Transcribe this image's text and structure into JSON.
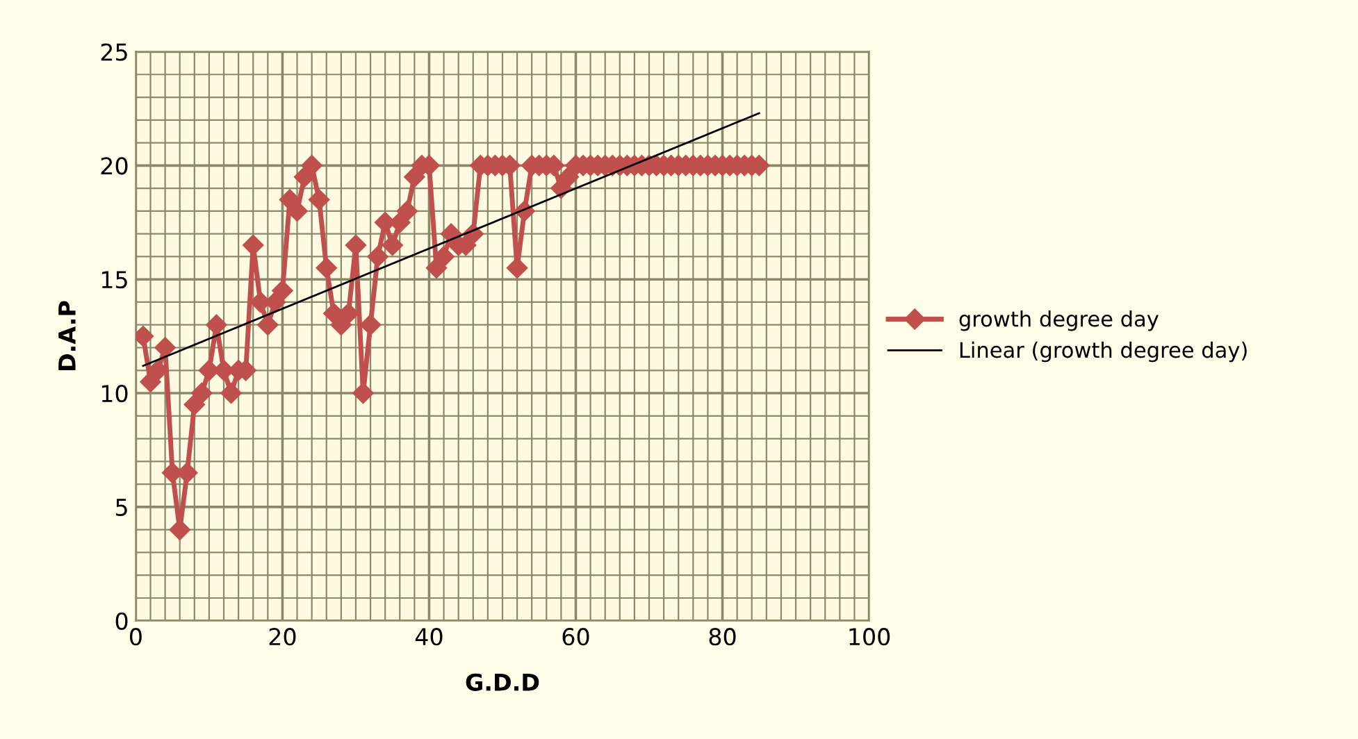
{
  "chart_data": {
    "type": "line",
    "xlabel": "G.D.D",
    "ylabel": "D.A.P",
    "xlim": [
      0,
      100
    ],
    "ylim": [
      0,
      25
    ],
    "xticks": [
      0,
      20,
      40,
      60,
      80,
      100
    ],
    "yticks": [
      0,
      5,
      10,
      15,
      20,
      25
    ],
    "grid": true,
    "legend": "right",
    "marker": "diamond",
    "line_style": "solid",
    "series": [
      {
        "name": "growth degree day",
        "color": "#c0504d",
        "x": [
          1,
          2,
          3,
          4,
          5,
          6,
          7,
          8,
          9,
          10,
          11,
          12,
          13,
          14,
          15,
          16,
          17,
          18,
          19,
          20,
          21,
          22,
          23,
          24,
          25,
          26,
          27,
          28,
          29,
          30,
          31,
          32,
          33,
          34,
          35,
          36,
          37,
          38,
          39,
          40,
          41,
          42,
          43,
          44,
          45,
          46,
          47,
          48,
          49,
          50,
          51,
          52,
          53,
          54,
          55,
          56,
          57,
          58,
          59,
          60,
          61,
          62,
          63,
          64,
          65,
          66,
          67,
          68,
          69,
          70,
          71,
          72,
          73,
          74,
          75,
          76,
          77,
          78,
          79,
          80,
          81,
          82,
          83,
          84,
          85
        ],
        "values": [
          12.5,
          10.5,
          11,
          12,
          6.5,
          4,
          6.5,
          9.5,
          10,
          11,
          13,
          11,
          10,
          11,
          11,
          16.5,
          14,
          13,
          14,
          14.5,
          18.5,
          18,
          19.5,
          20,
          18.5,
          15.5,
          13.5,
          13,
          13.5,
          16.5,
          10,
          13,
          16,
          17.5,
          16.5,
          17.5,
          18,
          19.5,
          20,
          20,
          15.5,
          16,
          17,
          16.5,
          16.5,
          17,
          20,
          20,
          20,
          20,
          20,
          15.5,
          18,
          20,
          20,
          20,
          20,
          19,
          19.5,
          20,
          20,
          20,
          20,
          20,
          20,
          20,
          20,
          20,
          20,
          20,
          20,
          20,
          20,
          20,
          20,
          20,
          20,
          20,
          20,
          20,
          20,
          20,
          20,
          20,
          20
        ]
      },
      {
        "name": "Linear (growth degree day)",
        "type": "line",
        "color": "#000000",
        "marker": "none",
        "x": [
          1,
          85
        ],
        "values": [
          11.2,
          22.3
        ]
      }
    ]
  }
}
